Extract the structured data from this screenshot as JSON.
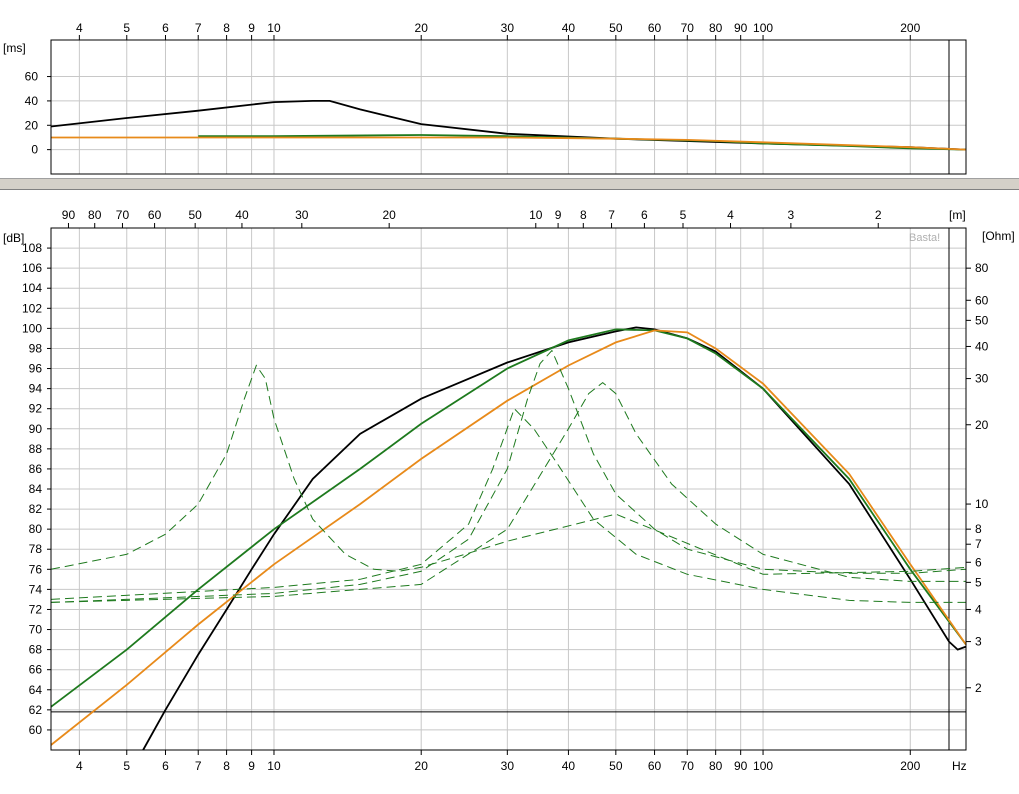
{
  "chart_data": [
    {
      "type": "line",
      "x_scale": "log",
      "xlim": [
        3.5,
        260
      ],
      "ylim": [
        -20,
        90
      ],
      "ylabel": "[ms]",
      "x_ticks": [
        4,
        5,
        6,
        7,
        8,
        9,
        10,
        20,
        30,
        40,
        50,
        60,
        70,
        80,
        90,
        100,
        200
      ],
      "y_ticks": [
        0,
        20,
        40,
        60
      ],
      "marker_x": 240,
      "grid": true,
      "series": [
        {
          "color": "#000000",
          "style": "solid",
          "x": [
            3.5,
            5,
            7,
            9,
            10,
            12,
            13,
            15,
            20,
            30,
            50,
            100,
            200,
            260
          ],
          "y": [
            19,
            26,
            32,
            37,
            39,
            40,
            40,
            33,
            21,
            13,
            9,
            5,
            2,
            0
          ]
        },
        {
          "color": "#1e7a1e",
          "style": "solid",
          "x": [
            7,
            10,
            20,
            30,
            50,
            80,
            100,
            150,
            200,
            260
          ],
          "y": [
            11,
            11,
            12,
            11,
            9,
            7,
            5,
            3,
            1,
            0
          ]
        },
        {
          "color": "#e88a1a",
          "style": "solid",
          "x": [
            3.5,
            10,
            20,
            30,
            50,
            70,
            100,
            200,
            260
          ],
          "y": [
            10,
            10,
            10,
            10,
            9,
            8,
            6,
            2,
            0
          ]
        }
      ]
    },
    {
      "type": "line",
      "x_scale": "log",
      "xlim": [
        3.5,
        260
      ],
      "ylim": [
        58,
        110
      ],
      "ylabel": "[dB]",
      "y2label": "[Ohm]",
      "xlabel": "Hz",
      "top_axis_label": "[m]",
      "watermark": "Basta!",
      "x_ticks": [
        4,
        5,
        6,
        7,
        8,
        9,
        10,
        20,
        30,
        40,
        50,
        60,
        70,
        80,
        90,
        100,
        200
      ],
      "y_ticks": [
        60,
        62,
        64,
        66,
        68,
        70,
        72,
        74,
        76,
        78,
        80,
        82,
        84,
        86,
        88,
        90,
        92,
        94,
        96,
        98,
        100,
        102,
        104,
        106,
        108
      ],
      "top_ticks": [
        {
          "label": "90",
          "f": 3.8
        },
        {
          "label": "80",
          "f": 4.3
        },
        {
          "label": "70",
          "f": 4.9
        },
        {
          "label": "60",
          "f": 5.7
        },
        {
          "label": "50",
          "f": 6.9
        },
        {
          "label": "40",
          "f": 8.6
        },
        {
          "label": "30",
          "f": 11.4
        },
        {
          "label": "20",
          "f": 17.2
        },
        {
          "label": "10",
          "f": 34.3
        },
        {
          "label": "9",
          "f": 38.1
        },
        {
          "label": "8",
          "f": 42.9
        },
        {
          "label": "7",
          "f": 49
        },
        {
          "label": "6",
          "f": 57.2
        },
        {
          "label": "5",
          "f": 68.6
        },
        {
          "label": "4",
          "f": 85.8
        },
        {
          "label": "3",
          "f": 114
        },
        {
          "label": "2",
          "f": 172
        }
      ],
      "y2_ticks": [
        {
          "label": "80",
          "db": 106
        },
        {
          "label": "60",
          "db": 102.8
        },
        {
          "label": "50",
          "db": 100.8
        },
        {
          "label": "40",
          "db": 98.2
        },
        {
          "label": "30",
          "db": 95
        },
        {
          "label": "20",
          "db": 90.4
        },
        {
          "label": "10",
          "db": 82.5
        },
        {
          "label": "8",
          "db": 80
        },
        {
          "label": "7",
          "db": 78.5
        },
        {
          "label": "6",
          "db": 76.7
        },
        {
          "label": "5",
          "db": 74.7
        },
        {
          "label": "4",
          "db": 72
        },
        {
          "label": "3",
          "db": 68.8
        },
        {
          "label": "2",
          "db": 64.2
        }
      ],
      "ref_line_db": 61.8,
      "marker_x": 240,
      "grid": true,
      "series": [
        {
          "color": "#000000",
          "style": "solid",
          "x": [
            5.4,
            6,
            7,
            8,
            9,
            10,
            12,
            15,
            20,
            30,
            40,
            50,
            55,
            60,
            70,
            80,
            100,
            150,
            200,
            240,
            250,
            260
          ],
          "y": [
            58,
            62,
            67.5,
            72,
            76,
            79.5,
            85,
            89.5,
            93,
            96.6,
            98.6,
            99.7,
            100.1,
            99.9,
            99,
            97.7,
            94,
            84.5,
            75,
            68.8,
            68,
            68.3
          ]
        },
        {
          "color": "#1e7a1e",
          "style": "solid",
          "x": [
            3.5,
            5,
            7,
            10,
            15,
            20,
            30,
            40,
            50,
            60,
            70,
            80,
            100,
            150,
            200,
            260
          ],
          "y": [
            62.3,
            68,
            74,
            80,
            86,
            90.5,
            96,
            98.8,
            99.9,
            99.8,
            99,
            97.5,
            94,
            85,
            76,
            68.5
          ]
        },
        {
          "color": "#e88a1a",
          "style": "solid",
          "x": [
            3.5,
            5,
            7,
            10,
            15,
            20,
            30,
            40,
            50,
            60,
            70,
            80,
            100,
            150,
            200,
            260
          ],
          "y": [
            58.5,
            64.5,
            70.5,
            76.5,
            82.5,
            87,
            92.8,
            96.3,
            98.6,
            99.8,
            99.6,
            98,
            94.5,
            85.5,
            76.5,
            68.5
          ]
        },
        {
          "color": "#1e7a1e",
          "style": "dashed",
          "x": [
            3.5,
            5,
            6,
            7,
            8,
            8.7,
            9.2,
            9.6,
            10,
            11,
            12,
            14,
            16,
            18,
            20,
            25,
            30,
            50,
            100,
            200,
            260
          ],
          "y": [
            76,
            77.5,
            79.5,
            82.5,
            87.5,
            93,
            96.3,
            95,
            91,
            85,
            81,
            77.5,
            76,
            75.8,
            76.2,
            77.6,
            78.8,
            81.5,
            75.5,
            75.8,
            76.2
          ]
        },
        {
          "color": "#1e7a1e",
          "style": "dashed",
          "x": [
            3.5,
            10,
            15,
            20,
            25,
            28,
            31,
            34,
            38,
            45,
            55,
            70,
            100,
            150,
            200,
            260
          ],
          "y": [
            73,
            74.2,
            75,
            76.5,
            80.5,
            86,
            92,
            90,
            86.5,
            81,
            77.5,
            75.5,
            74,
            72.9,
            72.7,
            72.7
          ]
        },
        {
          "color": "#1e7a1e",
          "style": "dashed",
          "x": [
            3.5,
            10,
            15,
            20,
            25,
            30,
            33,
            35,
            37,
            40,
            45,
            50,
            60,
            70,
            100,
            150,
            200,
            260
          ],
          "y": [
            72.7,
            73.6,
            74.5,
            75.8,
            79,
            86,
            93,
            96.5,
            97.8,
            94,
            87.5,
            83.5,
            80,
            78,
            76,
            75.6,
            75.6,
            76
          ]
        },
        {
          "color": "#1e7a1e",
          "style": "dashed",
          "x": [
            3.5,
            10,
            20,
            30,
            40,
            44,
            47,
            50,
            55,
            65,
            80,
            100,
            150,
            200,
            260
          ],
          "y": [
            72.7,
            73.3,
            74.5,
            80,
            90,
            93.5,
            94.6,
            93.5,
            89.5,
            84.5,
            80.5,
            77.5,
            75.2,
            74.8,
            74.8
          ]
        }
      ]
    }
  ]
}
